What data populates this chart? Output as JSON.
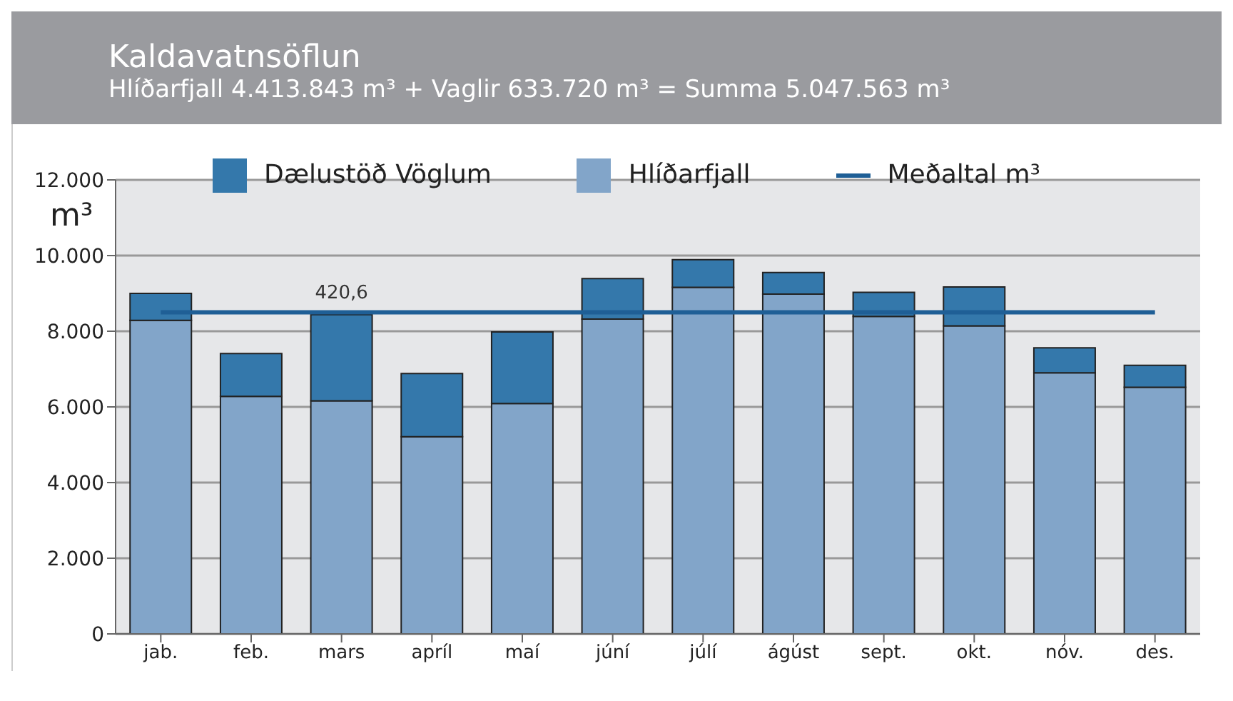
{
  "chart_data": {
    "type": "bar",
    "title": "Kaldavatnsöflun",
    "subtitle": "Hlíðarfjall 4.413.843 m³ + Vaglir 633.720 m³ = Summa 5.047.563 m³",
    "ylabel": "m³",
    "categories": [
      "jab.",
      "feb.",
      "mars",
      "apríl",
      "maí",
      "júní",
      "júlí",
      "ágúst",
      "sept.",
      "okt.",
      "nóv.",
      "des."
    ],
    "stacked": true,
    "series": [
      {
        "name": "Hlíðarfjall",
        "color": "#82a5c9",
        "values": [
          8290,
          6280,
          6160,
          5210,
          6090,
          8320,
          9160,
          8980,
          8390,
          8140,
          6900,
          6520
        ]
      },
      {
        "name": "Dælustöð Vöglum",
        "color": "#3478ab",
        "values": [
          710,
          1130,
          2280,
          1670,
          1890,
          1070,
          730,
          570,
          640,
          1030,
          660,
          580
        ]
      },
      {
        "name": "Meðaltal m³",
        "type": "line",
        "color": "#1f5f96",
        "values": [
          8500,
          8500,
          8500,
          8500,
          8500,
          8500,
          8500,
          8500,
          8500,
          8500,
          8500,
          8500
        ]
      }
    ],
    "ylim": [
      0,
      12000
    ],
    "yticks": [
      {
        "value": 0,
        "label": "0"
      },
      {
        "value": 2000,
        "label": "2.000"
      },
      {
        "value": 4000,
        "label": "4.000"
      },
      {
        "value": 6000,
        "label": "6.000"
      },
      {
        "value": 8000,
        "label": "8.000"
      },
      {
        "value": 10000,
        "label": "10.000"
      },
      {
        "value": 12000,
        "label": "12.000"
      }
    ],
    "grid": "y",
    "legend": "top",
    "annotations": [
      {
        "text": "420,6",
        "x": "mars",
        "y": 8500
      }
    ]
  }
}
